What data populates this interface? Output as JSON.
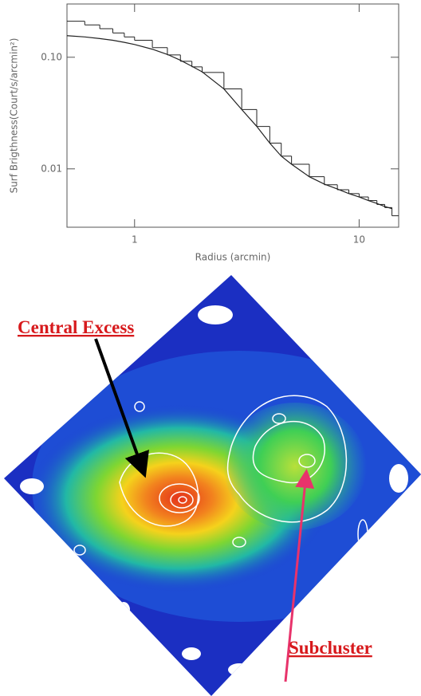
{
  "chart_data": {
    "type": "line",
    "xlabel": "Radius (arcmin)",
    "ylabel": "Surf Brigthness(Court/s/arcmin²)",
    "x": [
      0.5,
      0.6,
      0.7,
      0.8,
      0.9,
      1,
      1.2,
      1.4,
      1.6,
      1.8,
      2,
      2.5,
      3,
      3.5,
      4,
      4.5,
      5,
      6,
      7,
      8,
      9,
      10,
      11,
      12,
      13,
      14
    ],
    "series": [
      {
        "color": "#222222",
        "step": true,
        "values": [
          0.21,
          0.195,
          0.18,
          0.165,
          0.152,
          0.142,
          0.122,
          0.105,
          0.092,
          0.082,
          0.073,
          0.052,
          0.034,
          0.024,
          0.017,
          0.013,
          0.011,
          0.0085,
          0.0072,
          0.0065,
          0.006,
          0.0056,
          0.0052,
          0.0048,
          0.0045,
          0.0038
        ]
      },
      {
        "color": "#222222",
        "step": false,
        "values": [
          0.156,
          0.152,
          0.147,
          0.142,
          0.136,
          0.13,
          0.118,
          0.106,
          0.094,
          0.083,
          0.074,
          0.052,
          0.034,
          0.024,
          0.017,
          0.013,
          0.011,
          0.0085,
          0.0073,
          0.0066,
          0.006,
          0.0056,
          0.0052,
          0.0049,
          0.0046,
          0.0044
        ]
      }
    ],
    "xlim": [
      0.5,
      15
    ],
    "ylim": [
      0.003,
      0.3
    ],
    "xticks": [
      1,
      10
    ],
    "yticks": [
      {
        "value": 0.1,
        "label": "0.10"
      },
      {
        "value": 0.01,
        "label": "0.01"
      }
    ],
    "xlog": true,
    "ylog": true
  },
  "image": {
    "annotations": [
      {
        "text": "Central Excess"
      },
      {
        "text": "Subcluster"
      }
    ]
  }
}
